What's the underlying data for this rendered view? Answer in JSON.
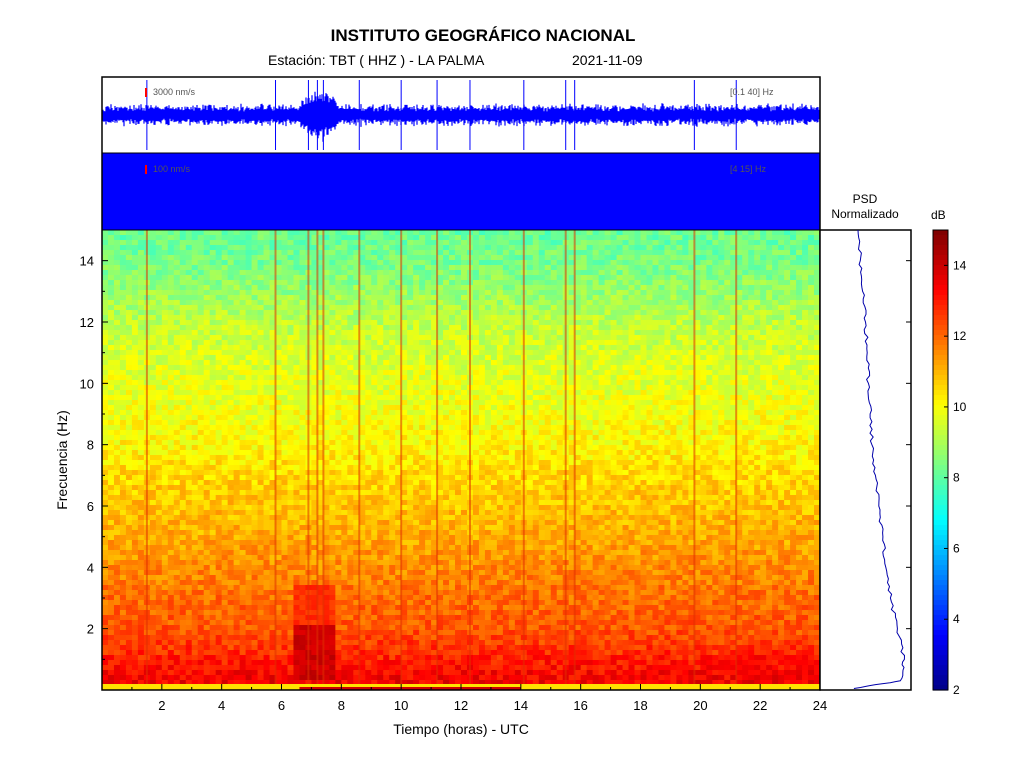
{
  "header": {
    "institution": "INSTITUTO GEOGRÁFICO NACIONAL",
    "station": "Estación:  TBT ( HHZ ) - LA PALMA",
    "date": "2021-11-09"
  },
  "traces": {
    "top": {
      "scale_label": "3000 nm/s",
      "band_label": "[0.1 40] Hz",
      "color": "#0000ff"
    },
    "bottom": {
      "scale_label": "100 nm/s",
      "band_label": "[4 15] Hz",
      "color": "#0000ff"
    }
  },
  "psd": {
    "title_line1": "PSD",
    "title_line2": "Normalizado"
  },
  "colorbar": {
    "unit_label": "dB",
    "ticks": [
      "2",
      "4",
      "6",
      "8",
      "10",
      "12",
      "14"
    ],
    "range": [
      2,
      15
    ],
    "colormap": "jet"
  },
  "chart_data": {
    "type": "heatmap",
    "xlabel": "Tiempo (horas) - UTC",
    "ylabel": "Frecuencia  (Hz)",
    "xlim": [
      0,
      24
    ],
    "ylim": [
      0,
      15
    ],
    "x_ticks": [
      "2",
      "4",
      "6",
      "8",
      "10",
      "12",
      "14",
      "16",
      "18",
      "20",
      "22",
      "24"
    ],
    "y_ticks": [
      "2",
      "4",
      "6",
      "8",
      "10",
      "12",
      "14"
    ],
    "color_db_by_frequency": [
      {
        "freq_hz": 0.3,
        "db": 13.5
      },
      {
        "freq_hz": 1.0,
        "db": 13.0
      },
      {
        "freq_hz": 2.0,
        "db": 12.3
      },
      {
        "freq_hz": 3.0,
        "db": 12.0
      },
      {
        "freq_hz": 4.0,
        "db": 11.6
      },
      {
        "freq_hz": 5.0,
        "db": 11.2
      },
      {
        "freq_hz": 6.0,
        "db": 10.9
      },
      {
        "freq_hz": 7.0,
        "db": 10.6
      },
      {
        "freq_hz": 8.0,
        "db": 10.2
      },
      {
        "freq_hz": 9.0,
        "db": 10.0
      },
      {
        "freq_hz": 10.0,
        "db": 9.8
      },
      {
        "freq_hz": 11.0,
        "db": 9.6
      },
      {
        "freq_hz": 12.0,
        "db": 9.3
      },
      {
        "freq_hz": 13.0,
        "db": 8.8
      },
      {
        "freq_hz": 14.0,
        "db": 8.4
      },
      {
        "freq_hz": 15.0,
        "db": 8.2
      }
    ],
    "events_hours": [
      1.5,
      5.8,
      6.9,
      7.2,
      7.4,
      8.6,
      10.0,
      11.2,
      12.3,
      14.1,
      15.5,
      15.8,
      19.8,
      21.2
    ],
    "strong_event": {
      "time_hours": [
        6.5,
        7.8
      ],
      "freq_hz": [
        0.3,
        3.5
      ],
      "db": 14
    },
    "psd_normalized": [
      {
        "freq_hz": 0.05,
        "value": 0.05
      },
      {
        "freq_hz": 0.3,
        "value": 0.85
      },
      {
        "freq_hz": 1.0,
        "value": 0.92
      },
      {
        "freq_hz": 2.0,
        "value": 0.8
      },
      {
        "freq_hz": 3.0,
        "value": 0.68
      },
      {
        "freq_hz": 4.0,
        "value": 0.6
      },
      {
        "freq_hz": 5.0,
        "value": 0.55
      },
      {
        "freq_hz": 6.0,
        "value": 0.48
      },
      {
        "freq_hz": 7.0,
        "value": 0.42
      },
      {
        "freq_hz": 8.0,
        "value": 0.36
      },
      {
        "freq_hz": 9.0,
        "value": 0.33
      },
      {
        "freq_hz": 10.0,
        "value": 0.3
      },
      {
        "freq_hz": 11.0,
        "value": 0.28
      },
      {
        "freq_hz": 12.0,
        "value": 0.25
      },
      {
        "freq_hz": 13.0,
        "value": 0.2
      },
      {
        "freq_hz": 14.0,
        "value": 0.16
      },
      {
        "freq_hz": 15.0,
        "value": 0.12
      }
    ]
  }
}
